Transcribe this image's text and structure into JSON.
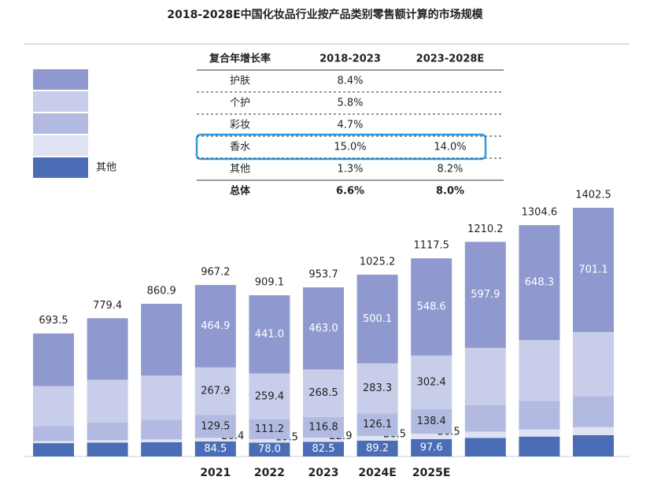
{
  "chart_data": {
    "type": "stacked_bar",
    "title": "2018-2028E中国化妆品行业按产品类别零售额计算的市场规模",
    "categories": [
      null,
      null,
      null,
      "2021",
      "2022",
      "2023",
      "2024E",
      "2025E",
      null,
      null,
      null
    ],
    "totals": [
      693.5,
      779.4,
      860.9,
      967.2,
      909.1,
      953.7,
      1025.2,
      1117.5,
      1210.2,
      1304.6,
      1402.5
    ],
    "series": [
      {
        "name": "其他",
        "color": "#4a6db5",
        "values": [
          75,
          78,
          80,
          84.5,
          78.0,
          82.5,
          89.2,
          97.6,
          105,
          112,
          120
        ],
        "value_labels": [
          null,
          null,
          null,
          "84.5",
          "78.0",
          "82.5",
          "89.2",
          "97.6",
          null,
          null,
          null
        ]
      },
      {
        "name": null,
        "color": "#dfe3f3",
        "values": [
          12,
          14,
          16,
          20.4,
          19.5,
          22.9,
          26.5,
          30.5,
          35,
          40,
          45
        ],
        "value_labels": [
          null,
          null,
          null,
          "20.4",
          "19.5",
          "22.9",
          "26.5",
          "30.5",
          null,
          null,
          null
        ]
      },
      {
        "name": null,
        "color": "#b3bae1",
        "values": [
          85,
          100,
          110,
          129.5,
          111.2,
          116.8,
          126.1,
          138.4,
          150,
          162,
          175
        ],
        "value_labels": [
          null,
          null,
          null,
          "129.5",
          "111.2",
          "116.8",
          "126.1",
          "138.4",
          null,
          null,
          null
        ]
      },
      {
        "name": null,
        "color": "#c8cde9",
        "values": [
          225,
          240,
          250,
          267.9,
          259.4,
          268.5,
          283.3,
          302.4,
          322.3,
          342.3,
          361.4
        ],
        "value_labels": [
          null,
          null,
          null,
          "267.9",
          "259.4",
          "268.5",
          "283.3",
          "302.4",
          null,
          null,
          null
        ]
      },
      {
        "name": null,
        "color": "#8f99d0",
        "values": [
          296.5,
          347.4,
          404.9,
          464.9,
          441.0,
          463.0,
          500.1,
          548.6,
          597.9,
          648.3,
          701.1
        ],
        "value_labels": [
          null,
          null,
          null,
          "464.9",
          "441.0",
          "463.0",
          "500.1",
          "548.6",
          "597.9",
          "648.3",
          "701.1"
        ]
      }
    ]
  },
  "table": {
    "header": [
      "复合年增长率",
      "2018-2023",
      "2023-2028E"
    ],
    "rows": [
      [
        "护肤",
        "8.4%",
        null
      ],
      [
        "个护",
        "5.8%",
        null
      ],
      [
        "彩妆",
        "4.7%",
        null
      ],
      [
        "香水",
        "15.0%",
        "14.0%"
      ],
      [
        "其他",
        "1.3%",
        "8.2%"
      ],
      [
        "总体",
        "6.6%",
        "8.0%"
      ]
    ]
  }
}
